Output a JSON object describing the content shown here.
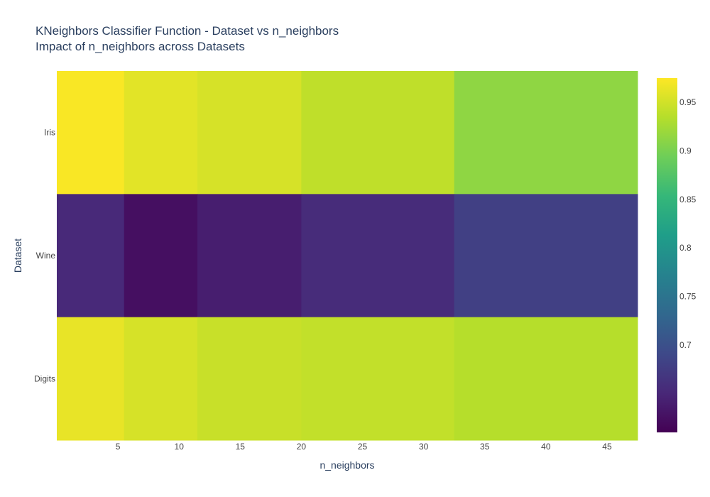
{
  "chart_data": {
    "type": "heatmap",
    "title": "KNeighbors Classifier Function - Dataset vs n_neighbors",
    "subtitle": "Impact of n_neighbors across Datasets",
    "xlabel": "n_neighbors",
    "ylabel": "Dataset",
    "x": [
      1,
      7,
      15,
      25,
      40
    ],
    "x_bin_edges": [
      0,
      5.5,
      11.5,
      20,
      32.5,
      47.5
    ],
    "y": [
      "Iris",
      "Wine",
      "Digits"
    ],
    "z": [
      [
        0.973,
        0.96,
        0.953,
        0.94,
        0.913
      ],
      [
        0.652,
        0.625,
        0.64,
        0.655,
        0.68
      ],
      [
        0.963,
        0.953,
        0.945,
        0.942,
        0.935
      ]
    ],
    "x_ticks": [
      5,
      10,
      15,
      20,
      25,
      30,
      35,
      40,
      45
    ],
    "xlim": [
      0,
      47.5
    ],
    "colorscale": "Viridis",
    "zmin": 0.61,
    "zmax": 0.975,
    "colorbar_ticks": [
      0.7,
      0.75,
      0.8,
      0.85,
      0.9,
      0.95
    ],
    "grid": false,
    "colors": {
      "text": "#2a3f5f",
      "tick_text": "#444444",
      "background": "#ffffff"
    }
  }
}
